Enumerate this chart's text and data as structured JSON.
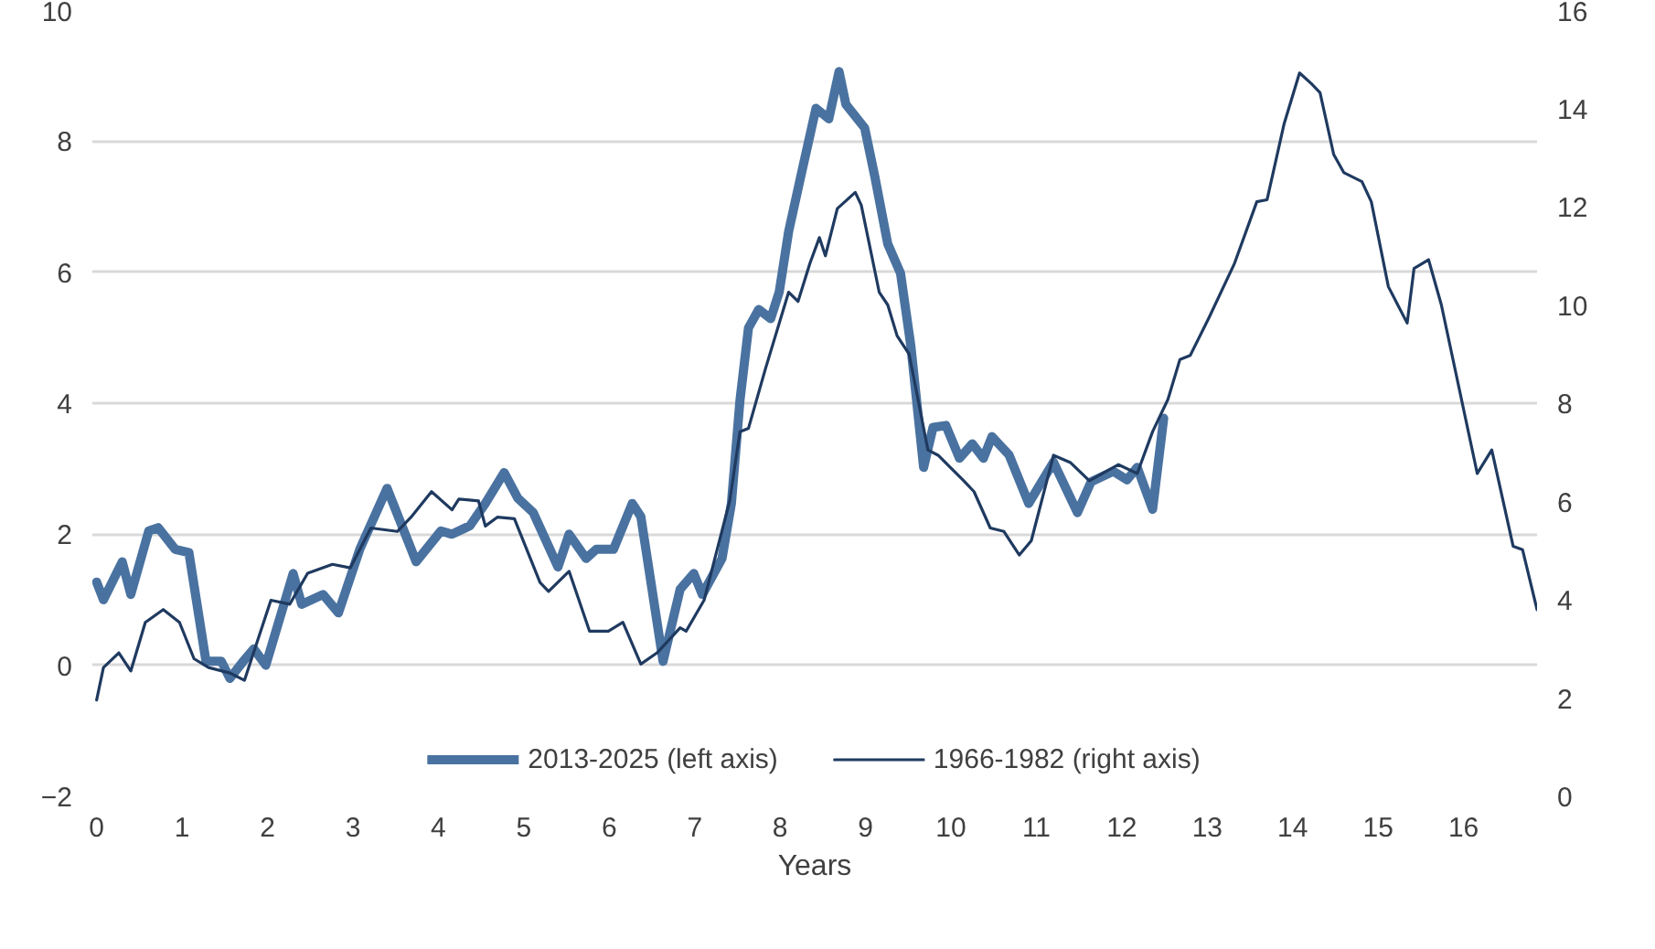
{
  "chart_data": {
    "type": "line",
    "xlabel": "Years",
    "xlim": [
      -0.05,
      16.86
    ],
    "xticks": [
      0,
      1,
      2,
      3,
      4,
      5,
      6,
      7,
      8,
      9,
      10,
      11,
      12,
      13,
      14,
      15,
      16
    ],
    "ylim": [
      -2,
      10
    ],
    "yticks": [
      -2,
      0,
      2,
      4,
      6,
      8,
      10
    ],
    "y2lim": [
      0,
      16
    ],
    "y2ticks": [
      0,
      2,
      4,
      6,
      8,
      10,
      12,
      14,
      16
    ],
    "grid": "y",
    "legend": "bottom",
    "series": [
      {
        "name": "2013-2025 (left axis)",
        "color": "#4a72a0",
        "x": [
          0,
          0.08,
          0.3,
          0.4,
          0.61,
          0.72,
          0.92,
          1.08,
          1.28,
          1.46,
          1.56,
          1.71,
          1.84,
          1.98,
          2.3,
          2.4,
          2.65,
          2.83,
          3.08,
          3.4,
          3.74,
          4.03,
          4.16,
          4.37,
          4.55,
          4.77,
          4.93,
          5.11,
          5.4,
          5.53,
          5.73,
          5.85,
          6.05,
          6.27,
          6.37,
          6.63,
          6.83,
          6.99,
          7.09,
          7.32,
          7.43,
          7.53,
          7.63,
          7.75,
          7.89,
          7.99,
          8.1,
          8.24,
          8.42,
          8.57,
          8.69,
          8.77,
          8.99,
          9.11,
          9.26,
          9.41,
          9.53,
          9.68,
          9.79,
          9.94,
          10.1,
          10.25,
          10.38,
          10.48,
          10.68,
          10.91,
          11.2,
          11.48,
          11.64,
          11.9,
          12.06,
          12.18,
          12.36,
          12.49
        ],
        "values": [
          1.27,
          1.0,
          1.58,
          1.08,
          2.05,
          2.1,
          1.77,
          1.72,
          0.06,
          0.06,
          -0.2,
          0.05,
          0.25,
          0,
          1.4,
          0.93,
          1.08,
          0.8,
          1.77,
          2.7,
          1.58,
          2.05,
          2.0,
          2.13,
          2.47,
          2.94,
          2.55,
          2.33,
          1.5,
          2.0,
          1.63,
          1.77,
          1.77,
          2.47,
          2.27,
          0.06,
          1.16,
          1.4,
          1.08,
          1.63,
          2.47,
          4.04,
          5.15,
          5.43,
          5.29,
          5.7,
          6.62,
          7.45,
          8.5,
          8.34,
          9.06,
          8.56,
          8.2,
          7.45,
          6.43,
          5.98,
          4.88,
          3.02,
          3.63,
          3.66,
          3.16,
          3.38,
          3.16,
          3.49,
          3.21,
          2.47,
          3.1,
          2.33,
          2.8,
          2.96,
          2.83,
          3.02,
          2.38,
          3.77
        ]
      },
      {
        "name": "1966-1982 (right axis)",
        "color": "#1f3a60",
        "axis": "y2",
        "x": [
          0,
          0.08,
          0.26,
          0.4,
          0.57,
          0.78,
          0.97,
          1.14,
          1.31,
          1.56,
          1.73,
          2.04,
          2.26,
          2.47,
          2.76,
          2.97,
          3.21,
          3.52,
          3.68,
          3.92,
          4.16,
          4.24,
          4.47,
          4.55,
          4.69,
          4.89,
          5.19,
          5.29,
          5.53,
          5.77,
          5.99,
          6.16,
          6.37,
          6.56,
          6.83,
          6.9,
          7.11,
          7.41,
          7.53,
          7.63,
          7.83,
          8.1,
          8.21,
          8.35,
          8.46,
          8.53,
          8.67,
          8.88,
          8.95,
          9.16,
          9.26,
          9.37,
          9.51,
          9.73,
          9.85,
          10.15,
          10.27,
          10.46,
          10.62,
          10.8,
          10.94,
          11.2,
          11.4,
          11.62,
          11.96,
          12.18,
          12.36,
          12.54,
          12.68,
          12.8,
          13.02,
          13.32,
          13.58,
          13.7,
          13.9,
          14.08,
          14.22,
          14.32,
          14.48,
          14.6,
          14.81,
          14.92,
          15.12,
          15.34,
          15.42,
          15.59,
          15.74,
          16.16,
          16.33,
          16.58,
          16.69,
          16.86
        ],
        "values": [
          1.96,
          2.62,
          2.92,
          2.55,
          3.54,
          3.8,
          3.54,
          2.8,
          2.62,
          2.51,
          2.36,
          3.99,
          3.91,
          4.54,
          4.72,
          4.65,
          5.46,
          5.39,
          5.68,
          6.2,
          5.83,
          6.05,
          6.01,
          5.5,
          5.68,
          5.65,
          4.35,
          4.17,
          4.58,
          3.36,
          3.36,
          3.54,
          2.69,
          2.92,
          3.43,
          3.36,
          3.99,
          6.01,
          7.42,
          7.49,
          8.71,
          10.26,
          10.07,
          10.85,
          11.37,
          11.0,
          11.96,
          12.29,
          12.03,
          10.26,
          10.0,
          9.37,
          9.0,
          7.05,
          6.94,
          6.42,
          6.2,
          5.46,
          5.39,
          4.91,
          5.2,
          6.94,
          6.79,
          6.42,
          6.75,
          6.57,
          7.42,
          8.08,
          8.89,
          8.97,
          9.74,
          10.85,
          12.1,
          12.14,
          13.69,
          14.72,
          14.5,
          14.32,
          13.06,
          12.69,
          12.51,
          12.1,
          10.37,
          9.63,
          10.74,
          10.92,
          10.0,
          6.57,
          7.05,
          5.09,
          5.02,
          3.8
        ]
      }
    ]
  }
}
